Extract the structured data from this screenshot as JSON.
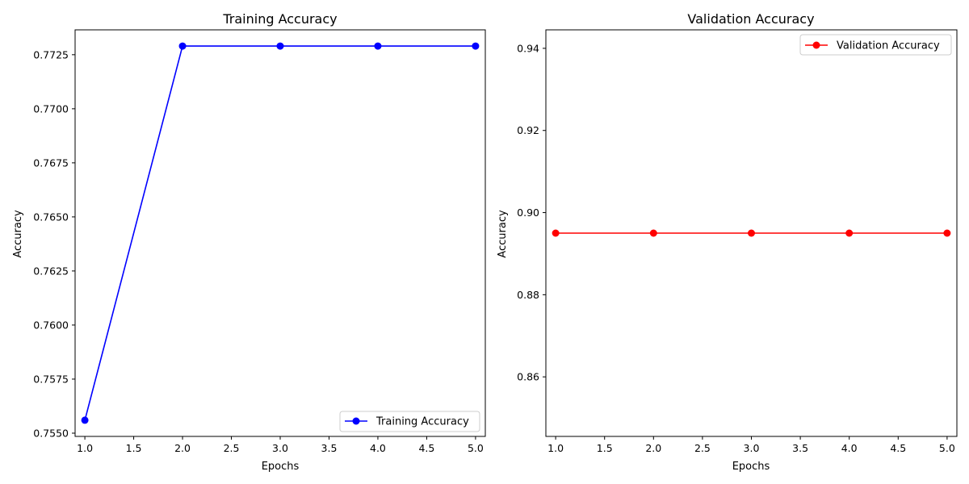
{
  "chart_data": [
    {
      "type": "line",
      "title": "Training Accuracy",
      "xlabel": "Epochs",
      "ylabel": "Accuracy",
      "xlim": [
        0.9,
        5.1
      ],
      "ylim": [
        0.75485,
        0.77365
      ],
      "xticks": [
        1.0,
        1.5,
        2.0,
        2.5,
        3.0,
        3.5,
        4.0,
        4.5,
        5.0
      ],
      "xtick_labels": [
        "1.0",
        "1.5",
        "2.0",
        "2.5",
        "3.0",
        "3.5",
        "4.0",
        "4.5",
        "5.0"
      ],
      "yticks": [
        0.755,
        0.7575,
        0.76,
        0.7625,
        0.765,
        0.7675,
        0.77,
        0.7725
      ],
      "ytick_labels": [
        "0.7550",
        "0.7575",
        "0.7600",
        "0.7625",
        "0.7650",
        "0.7675",
        "0.7700",
        "0.7725"
      ],
      "legend_position": "lower-right",
      "grid": false,
      "series": [
        {
          "name": "Training Accuracy",
          "color": "#0000ff",
          "x": [
            1,
            2,
            3,
            4,
            5
          ],
          "y": [
            0.7556,
            0.7729,
            0.7729,
            0.7729,
            0.7729
          ]
        }
      ]
    },
    {
      "type": "line",
      "title": "Validation Accuracy",
      "xlabel": "Epochs",
      "ylabel": "Accuracy",
      "xlim": [
        0.9,
        5.1
      ],
      "ylim": [
        0.8455,
        0.9445
      ],
      "xticks": [
        1.0,
        1.5,
        2.0,
        2.5,
        3.0,
        3.5,
        4.0,
        4.5,
        5.0
      ],
      "xtick_labels": [
        "1.0",
        "1.5",
        "2.0",
        "2.5",
        "3.0",
        "3.5",
        "4.0",
        "4.5",
        "5.0"
      ],
      "yticks": [
        0.86,
        0.88,
        0.9,
        0.92,
        0.94
      ],
      "ytick_labels": [
        "0.86",
        "0.88",
        "0.90",
        "0.92",
        "0.94"
      ],
      "legend_position": "upper-right",
      "grid": false,
      "series": [
        {
          "name": "Validation Accuracy",
          "color": "#ff0000",
          "x": [
            1,
            2,
            3,
            4,
            5
          ],
          "y": [
            0.895,
            0.895,
            0.895,
            0.895,
            0.895
          ]
        }
      ]
    }
  ]
}
